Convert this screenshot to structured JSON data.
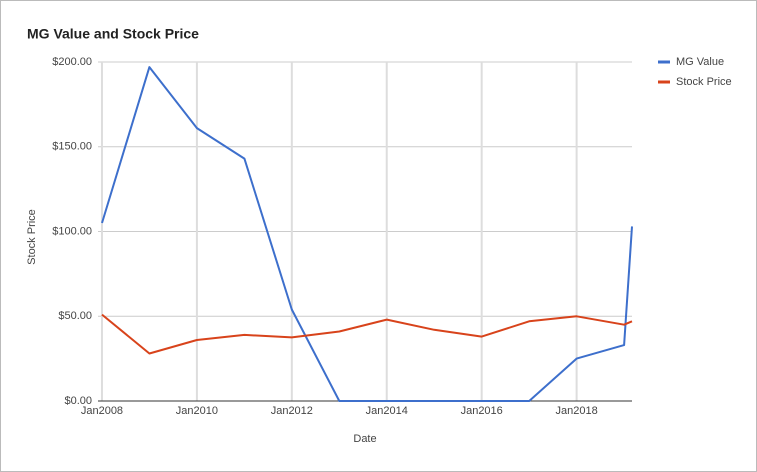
{
  "chart_data": {
    "type": "line",
    "title": "MG Value and Stock Price",
    "x_label": "Date",
    "y_label": "Stock Price",
    "x": [
      "2008-01",
      "2009-01",
      "2010-01",
      "2011-01",
      "2012-01",
      "2013-01",
      "2014-01",
      "2015-01",
      "2016-01",
      "2017-01",
      "2018-01",
      "2019-01",
      "2019-03"
    ],
    "series": [
      {
        "name": "MG Value",
        "color": "#3d6fcc",
        "values": [
          105,
          197,
          161,
          143,
          54,
          0,
          0,
          0,
          0,
          0,
          25,
          33,
          103
        ]
      },
      {
        "name": "Stock Price",
        "color": "#d8431b",
        "values": [
          51,
          28,
          36,
          39,
          37.5,
          41,
          48,
          42,
          38,
          47,
          50,
          45,
          47
        ]
      }
    ],
    "xlim": [
      "2007-12",
      "2019-03"
    ],
    "xticks": [
      {
        "value": "2008-01",
        "label": "Jan2008"
      },
      {
        "value": "2010-01",
        "label": "Jan2010"
      },
      {
        "value": "2012-01",
        "label": "Jan2012"
      },
      {
        "value": "2014-01",
        "label": "Jan2014"
      },
      {
        "value": "2016-01",
        "label": "Jan2016"
      },
      {
        "value": "2018-01",
        "label": "Jan2018"
      }
    ],
    "ylim": [
      0,
      200
    ],
    "yticks": [
      {
        "value": 0,
        "label": "$0.00"
      },
      {
        "value": 50,
        "label": "$50.00"
      },
      {
        "value": 100,
        "label": "$100.00"
      },
      {
        "value": 150,
        "label": "$150.00"
      },
      {
        "value": 200,
        "label": "$200.00"
      }
    ],
    "grid": true,
    "legend": "right"
  }
}
